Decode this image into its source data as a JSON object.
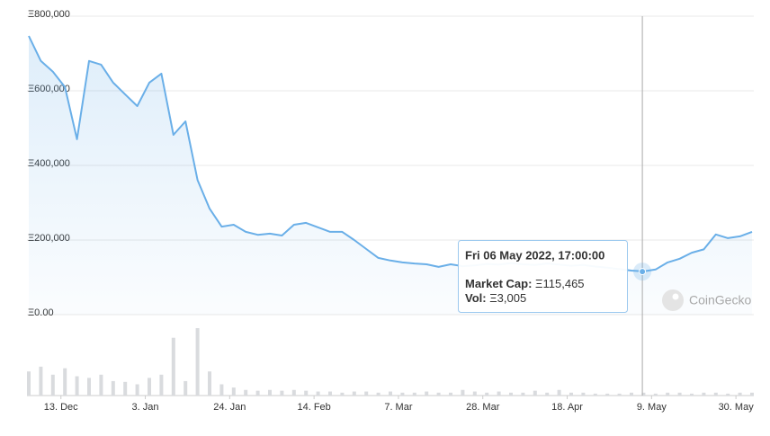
{
  "chart_data": {
    "type": "line",
    "x": [
      "2021-12-05",
      "2021-12-08",
      "2021-12-11",
      "2021-12-14",
      "2021-12-17",
      "2021-12-20",
      "2021-12-23",
      "2021-12-26",
      "2021-12-29",
      "2022-01-01",
      "2022-01-04",
      "2022-01-07",
      "2022-01-10",
      "2022-01-13",
      "2022-01-16",
      "2022-01-19",
      "2022-01-22",
      "2022-01-25",
      "2022-01-28",
      "2022-01-31",
      "2022-02-03",
      "2022-02-06",
      "2022-02-09",
      "2022-02-12",
      "2022-02-15",
      "2022-02-18",
      "2022-02-21",
      "2022-02-24",
      "2022-02-27",
      "2022-03-02",
      "2022-03-05",
      "2022-03-08",
      "2022-03-11",
      "2022-03-14",
      "2022-03-17",
      "2022-03-20",
      "2022-03-23",
      "2022-03-26",
      "2022-03-29",
      "2022-04-01",
      "2022-04-04",
      "2022-04-07",
      "2022-04-10",
      "2022-04-13",
      "2022-04-16",
      "2022-04-19",
      "2022-04-22",
      "2022-04-25",
      "2022-04-28",
      "2022-05-01",
      "2022-05-04",
      "2022-05-07",
      "2022-05-10",
      "2022-05-13",
      "2022-05-16",
      "2022-05-19",
      "2022-05-22",
      "2022-05-25",
      "2022-05-28",
      "2022-05-31",
      "2022-06-03"
    ],
    "series": [
      {
        "color": "#6aafe8",
        "values": [
          747000,
          680000,
          651000,
          610000,
          470000,
          680000,
          670000,
          622000,
          590000,
          559000,
          622000,
          646000,
          482000,
          518000,
          361000,
          284000,
          236000,
          241000,
          222000,
          214000,
          217000,
          212000,
          241000,
          246000,
          234000,
          222000,
          222000,
          200000,
          176000,
          152000,
          145000,
          140000,
          137000,
          135000,
          128000,
          135000,
          130000,
          132000,
          136000,
          134000,
          138000,
          135000,
          133000,
          137000,
          134000,
          131000,
          133000,
          129000,
          126000,
          122000,
          118000,
          116000,
          121000,
          140000,
          150000,
          166000,
          175000,
          215000,
          205000,
          210000,
          222000
        ]
      }
    ],
    "volume": {
      "color": "#d9dbde",
      "values": [
        30000,
        36000,
        26000,
        34000,
        24000,
        22000,
        26000,
        18000,
        17000,
        14000,
        22000,
        26000,
        72000,
        18000,
        84000,
        30000,
        14000,
        10000,
        7000,
        6000,
        7000,
        6000,
        7000,
        6000,
        5000,
        5000,
        3600,
        5000,
        5000,
        3600,
        5000,
        3600,
        3600,
        5000,
        3600,
        3600,
        7000,
        5000,
        3600,
        5000,
        3600,
        3600,
        6000,
        3600,
        7000,
        3600,
        3600,
        2400,
        2400,
        2400,
        3600,
        3600,
        2400,
        3600,
        3600,
        2400,
        3600,
        3600,
        2400,
        3600,
        3600
      ]
    },
    "xlim": [
      "2021-12-05",
      "2022-06-03"
    ],
    "xticks": [
      {
        "value": "2021-12-13",
        "label": "13. Dec"
      },
      {
        "value": "2022-01-03",
        "label": "3. Jan"
      },
      {
        "value": "2022-01-24",
        "label": "24. Jan"
      },
      {
        "value": "2022-02-14",
        "label": "14. Feb"
      },
      {
        "value": "2022-03-07",
        "label": "7. Mar"
      },
      {
        "value": "2022-03-28",
        "label": "28. Mar"
      },
      {
        "value": "2022-04-18",
        "label": "18. Apr"
      },
      {
        "value": "2022-05-09",
        "label": "9. May"
      },
      {
        "value": "2022-05-30",
        "label": "30. May"
      }
    ],
    "ylim": [
      0,
      800000
    ],
    "yticks": [
      {
        "value": 0,
        "label": "Ξ0.00"
      },
      {
        "value": 200000,
        "label": "Ξ200,000"
      },
      {
        "value": 400000,
        "label": "Ξ400,000"
      },
      {
        "value": 600000,
        "label": "Ξ600,000"
      },
      {
        "value": 800000,
        "label": "Ξ800,000"
      }
    ],
    "grid": true,
    "hover": {
      "x": "2022-05-06T17:00:00",
      "date": "Fri 06 May 2022, 17:00:00",
      "fields": [
        {
          "name": "Market Cap:",
          "value": 115465,
          "label": "Ξ115,465"
        },
        {
          "name": "Vol:",
          "value": 3005,
          "label": "Ξ3,005"
        }
      ]
    },
    "watermark": "CoinGecko"
  }
}
